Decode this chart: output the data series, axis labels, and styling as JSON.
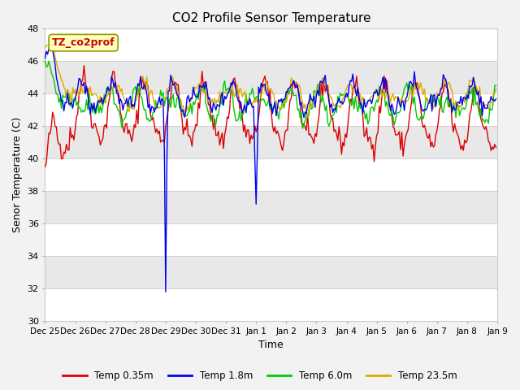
{
  "title": "CO2 Profile Sensor Temperature",
  "ylabel": "Senor Temperature (C)",
  "xlabel": "Time",
  "ylim": [
    30,
    48
  ],
  "yticks": [
    30,
    32,
    34,
    36,
    38,
    40,
    42,
    44,
    46,
    48
  ],
  "legend_label": "TZ_co2prof",
  "fig_bg": "#f2f2f2",
  "plot_bg": "#ffffff",
  "band_colors": [
    "#ffffff",
    "#e8e8e8"
  ],
  "line_colors": {
    "t035": "#dd0000",
    "t18": "#0000ee",
    "t60": "#00cc00",
    "t235": "#ddaa00"
  },
  "legend_labels": [
    "Temp 0.35m",
    "Temp 1.8m",
    "Temp 6.0m",
    "Temp 23.5m"
  ],
  "num_points": 360,
  "date_ticks": [
    0,
    24,
    48,
    72,
    96,
    120,
    144,
    168,
    192,
    216,
    240,
    264,
    288,
    312,
    336,
    360
  ],
  "date_labels": [
    "Dec 25",
    "Dec 26",
    "Dec 27",
    "Dec 28",
    "Dec 29",
    "Dec 30",
    "Dec 31",
    "Jan 1",
    "Jan 2",
    "Jan 3",
    "Jan 4",
    "Jan 5",
    "Jan 6",
    "Jan 7",
    "Jan 8",
    "Jan 9"
  ]
}
